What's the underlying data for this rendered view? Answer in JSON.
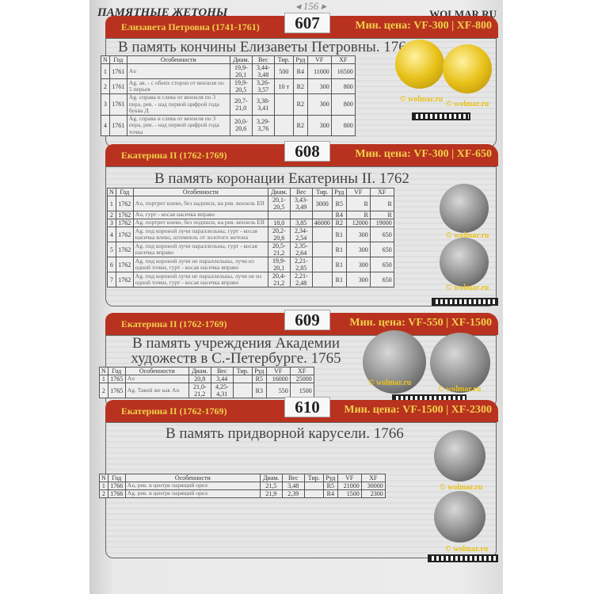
{
  "header": {
    "page_number": "◂ 156 ▸",
    "running_title": "ПАМЯТНЫЕ ЖЕТОНЫ",
    "site": "WOLMAR.RU"
  },
  "columns": [
    "N",
    "Год",
    "Особенности",
    "Диам.",
    "Вес",
    "Тир.",
    "Руд",
    "VF",
    "XF"
  ],
  "watermark": "© wolmar.ru",
  "colors": {
    "banner": "#b8321f",
    "banner_text": "#f2d04a"
  },
  "sections": [
    {
      "number": "607",
      "ruler": "Елизавета Петровна (1741-1761)",
      "price": "Мин. цена: VF-300 | XF-800",
      "title": "В память кончины Елизаветы Петровны. 1761",
      "image_number": "1",
      "rows": [
        [
          "1",
          "1761",
          "Au",
          "19,9-20,1",
          "3,44-3,48",
          "500",
          "R4",
          "11000",
          "16500"
        ],
        [
          "2",
          "1761",
          "Ag. ав. - с обеих сторон от вензеля по 5 перьев",
          "19,9-20,5",
          "3,26-3,57",
          "10 т",
          "R2",
          "300",
          "800"
        ],
        [
          "3",
          "1761",
          "Ag. справа и слева от вензеля по 3 пера, рев. - над первой цифрой года буква Д",
          "20,7-21,0",
          "3,38-3,41",
          "",
          "R2",
          "300",
          "800"
        ],
        [
          "4",
          "1761",
          "Ag. справа и слева от вензеля по 3 пера, рев. - над первой цифрой года точка",
          "20,0-20,6",
          "3,29-3,76",
          "",
          "R2",
          "300",
          "800"
        ]
      ]
    },
    {
      "number": "608",
      "ruler": "Екатерина II (1762-1769)",
      "price": "Мин. цена: VF-300 | XF-650",
      "title": "В память коронации Екатерины II. 1762",
      "image_number": "2",
      "rows": [
        [
          "1",
          "1762",
          "Au, портрет влево, без надписи, на рев. вензель ЕII",
          "20,1-20,5",
          "3,43-3,49",
          "3000",
          "R5",
          "R",
          "R"
        ],
        [
          "2",
          "1762",
          "Au, гурт - косая насечка вправо",
          "",
          "",
          "",
          "R4",
          "R",
          "R"
        ],
        [
          "3",
          "1762",
          "Ag. портрет влево, без подписи, на рев. вензель ЕII",
          "18,0",
          "3,85",
          "46000",
          "R2",
          "12000",
          "19000"
        ],
        [
          "4",
          "1762",
          "Ag. под короной лучи параллельны, гурт - косая насечка влево, штемпель от золотого жетона",
          "20,2-20,6",
          "2,34-2,54",
          "",
          "R1",
          "300",
          "650"
        ],
        [
          "5",
          "1762",
          "Ag. под короной лучи параллельны, гурт - косая насечка вправо",
          "20,5-21,2",
          "2,35-2,64",
          "",
          "R1",
          "300",
          "650"
        ],
        [
          "6",
          "1762",
          "Ag. под короной лучи не параллельны, лучи из одной точки, гурт - косая насечка вправо",
          "19,9-20,1",
          "2,21-2,85",
          "",
          "R1",
          "300",
          "650"
        ],
        [
          "7",
          "1762",
          "Ag. под короной лучи не параллельны, лучи не из одной точки, гурт - косая насечка вправо",
          "20,4-21,2",
          "2,21-2,48",
          "",
          "R1",
          "300",
          "650"
        ]
      ]
    },
    {
      "number": "609",
      "ruler": "Екатерина II (1762-1769)",
      "price": "Мин. цена: VF-550 | XF-1500",
      "title": "В память учреждения Академии художеств в С.-Петербурге. 1765",
      "image_number": "2",
      "rows": [
        [
          "1",
          "1765",
          "Au",
          "20,8",
          "3,44",
          "",
          "R5",
          "16000",
          "25000"
        ],
        [
          "2",
          "1765",
          "Ag. Такой же как Au",
          "21,0-21,2",
          "4,25-4,31",
          "",
          "R3",
          "550",
          "1500"
        ]
      ]
    },
    {
      "number": "610",
      "ruler": "Екатерина II (1762-1769)",
      "price": "Мин. цена: VF-1500 | XF-2300",
      "title": "В память придворной карусели. 1766",
      "image_number": "2",
      "rows": [
        [
          "1",
          "1766",
          "Au, рев. в центре парящий орел",
          "21,5",
          "3,48",
          "",
          "R5",
          "21000",
          "30000"
        ],
        [
          "2",
          "1766",
          "Ag. рев. в центре парящий орел",
          "21,9",
          "2,39",
          "",
          "R4",
          "1500",
          "2300"
        ]
      ]
    }
  ]
}
